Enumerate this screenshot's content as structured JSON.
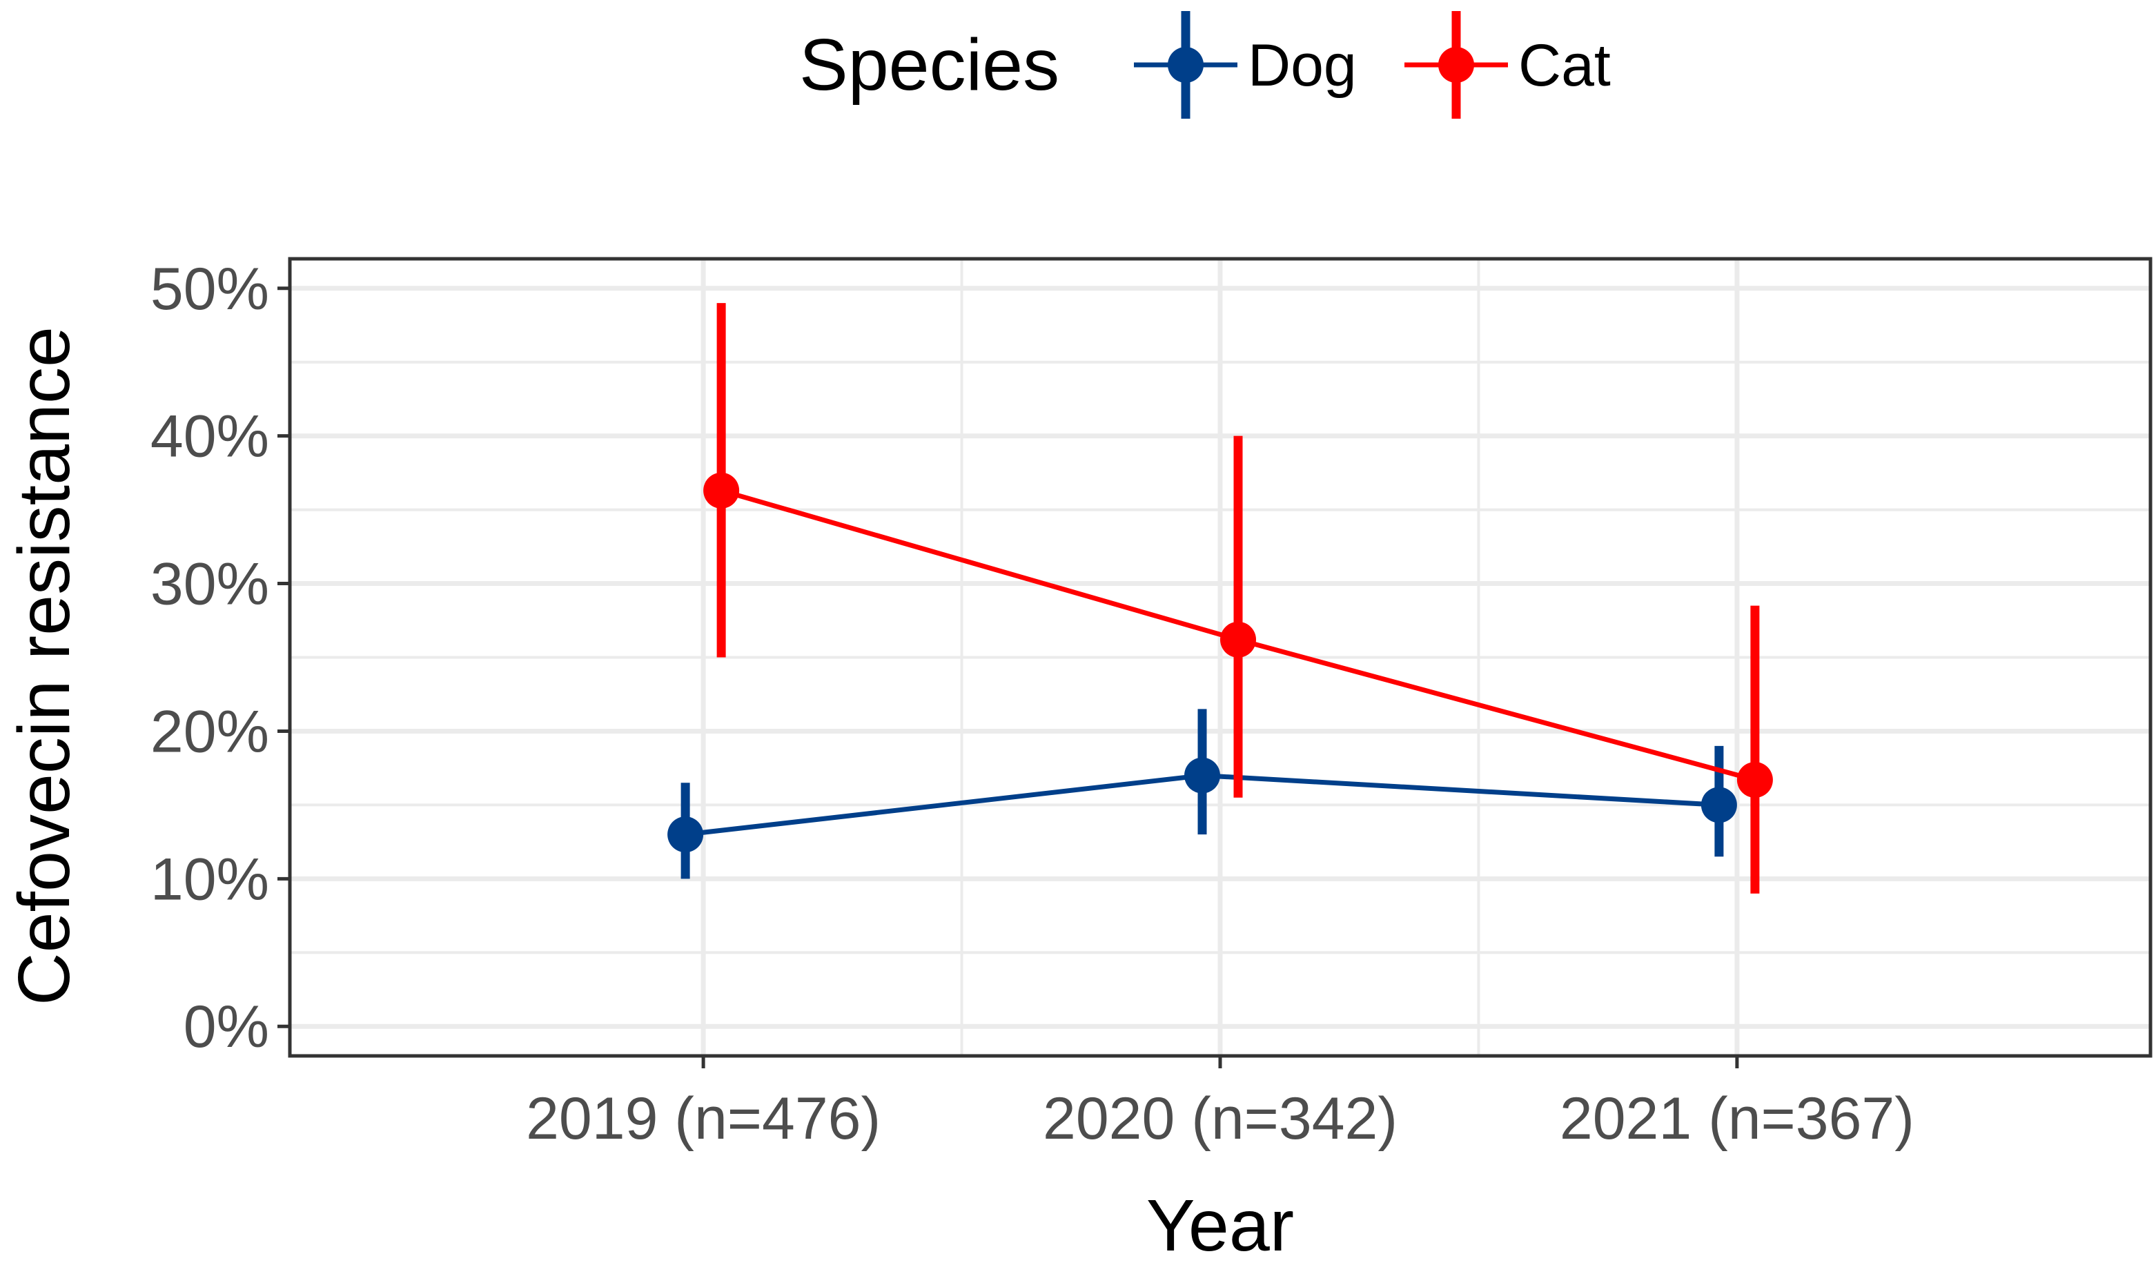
{
  "chart_data": {
    "type": "line",
    "title": "",
    "xlabel": "Year",
    "ylabel": "Cefovecin resistance",
    "categories": [
      "2019 (n=476)",
      "2020 (n=342)",
      "2021 (n=367)"
    ],
    "y_ticks": [
      "0%",
      "10%",
      "20%",
      "30%",
      "40%",
      "50%"
    ],
    "ylim": [
      -0.02,
      0.52
    ],
    "grid": true,
    "error_bars": true,
    "legend": {
      "title": "Species",
      "position": "top",
      "entries": [
        "Dog",
        "Cat"
      ]
    },
    "series": [
      {
        "name": "Dog",
        "color": "#003F8A",
        "values": [
          0.13,
          0.17,
          0.15
        ],
        "lower": [
          0.1,
          0.13,
          0.115
        ],
        "upper": [
          0.165,
          0.215,
          0.19
        ]
      },
      {
        "name": "Cat",
        "color": "#FF0000",
        "values": [
          0.363,
          0.262,
          0.167
        ],
        "lower": [
          0.25,
          0.155,
          0.09
        ],
        "upper": [
          0.49,
          0.4,
          0.285
        ]
      }
    ]
  }
}
